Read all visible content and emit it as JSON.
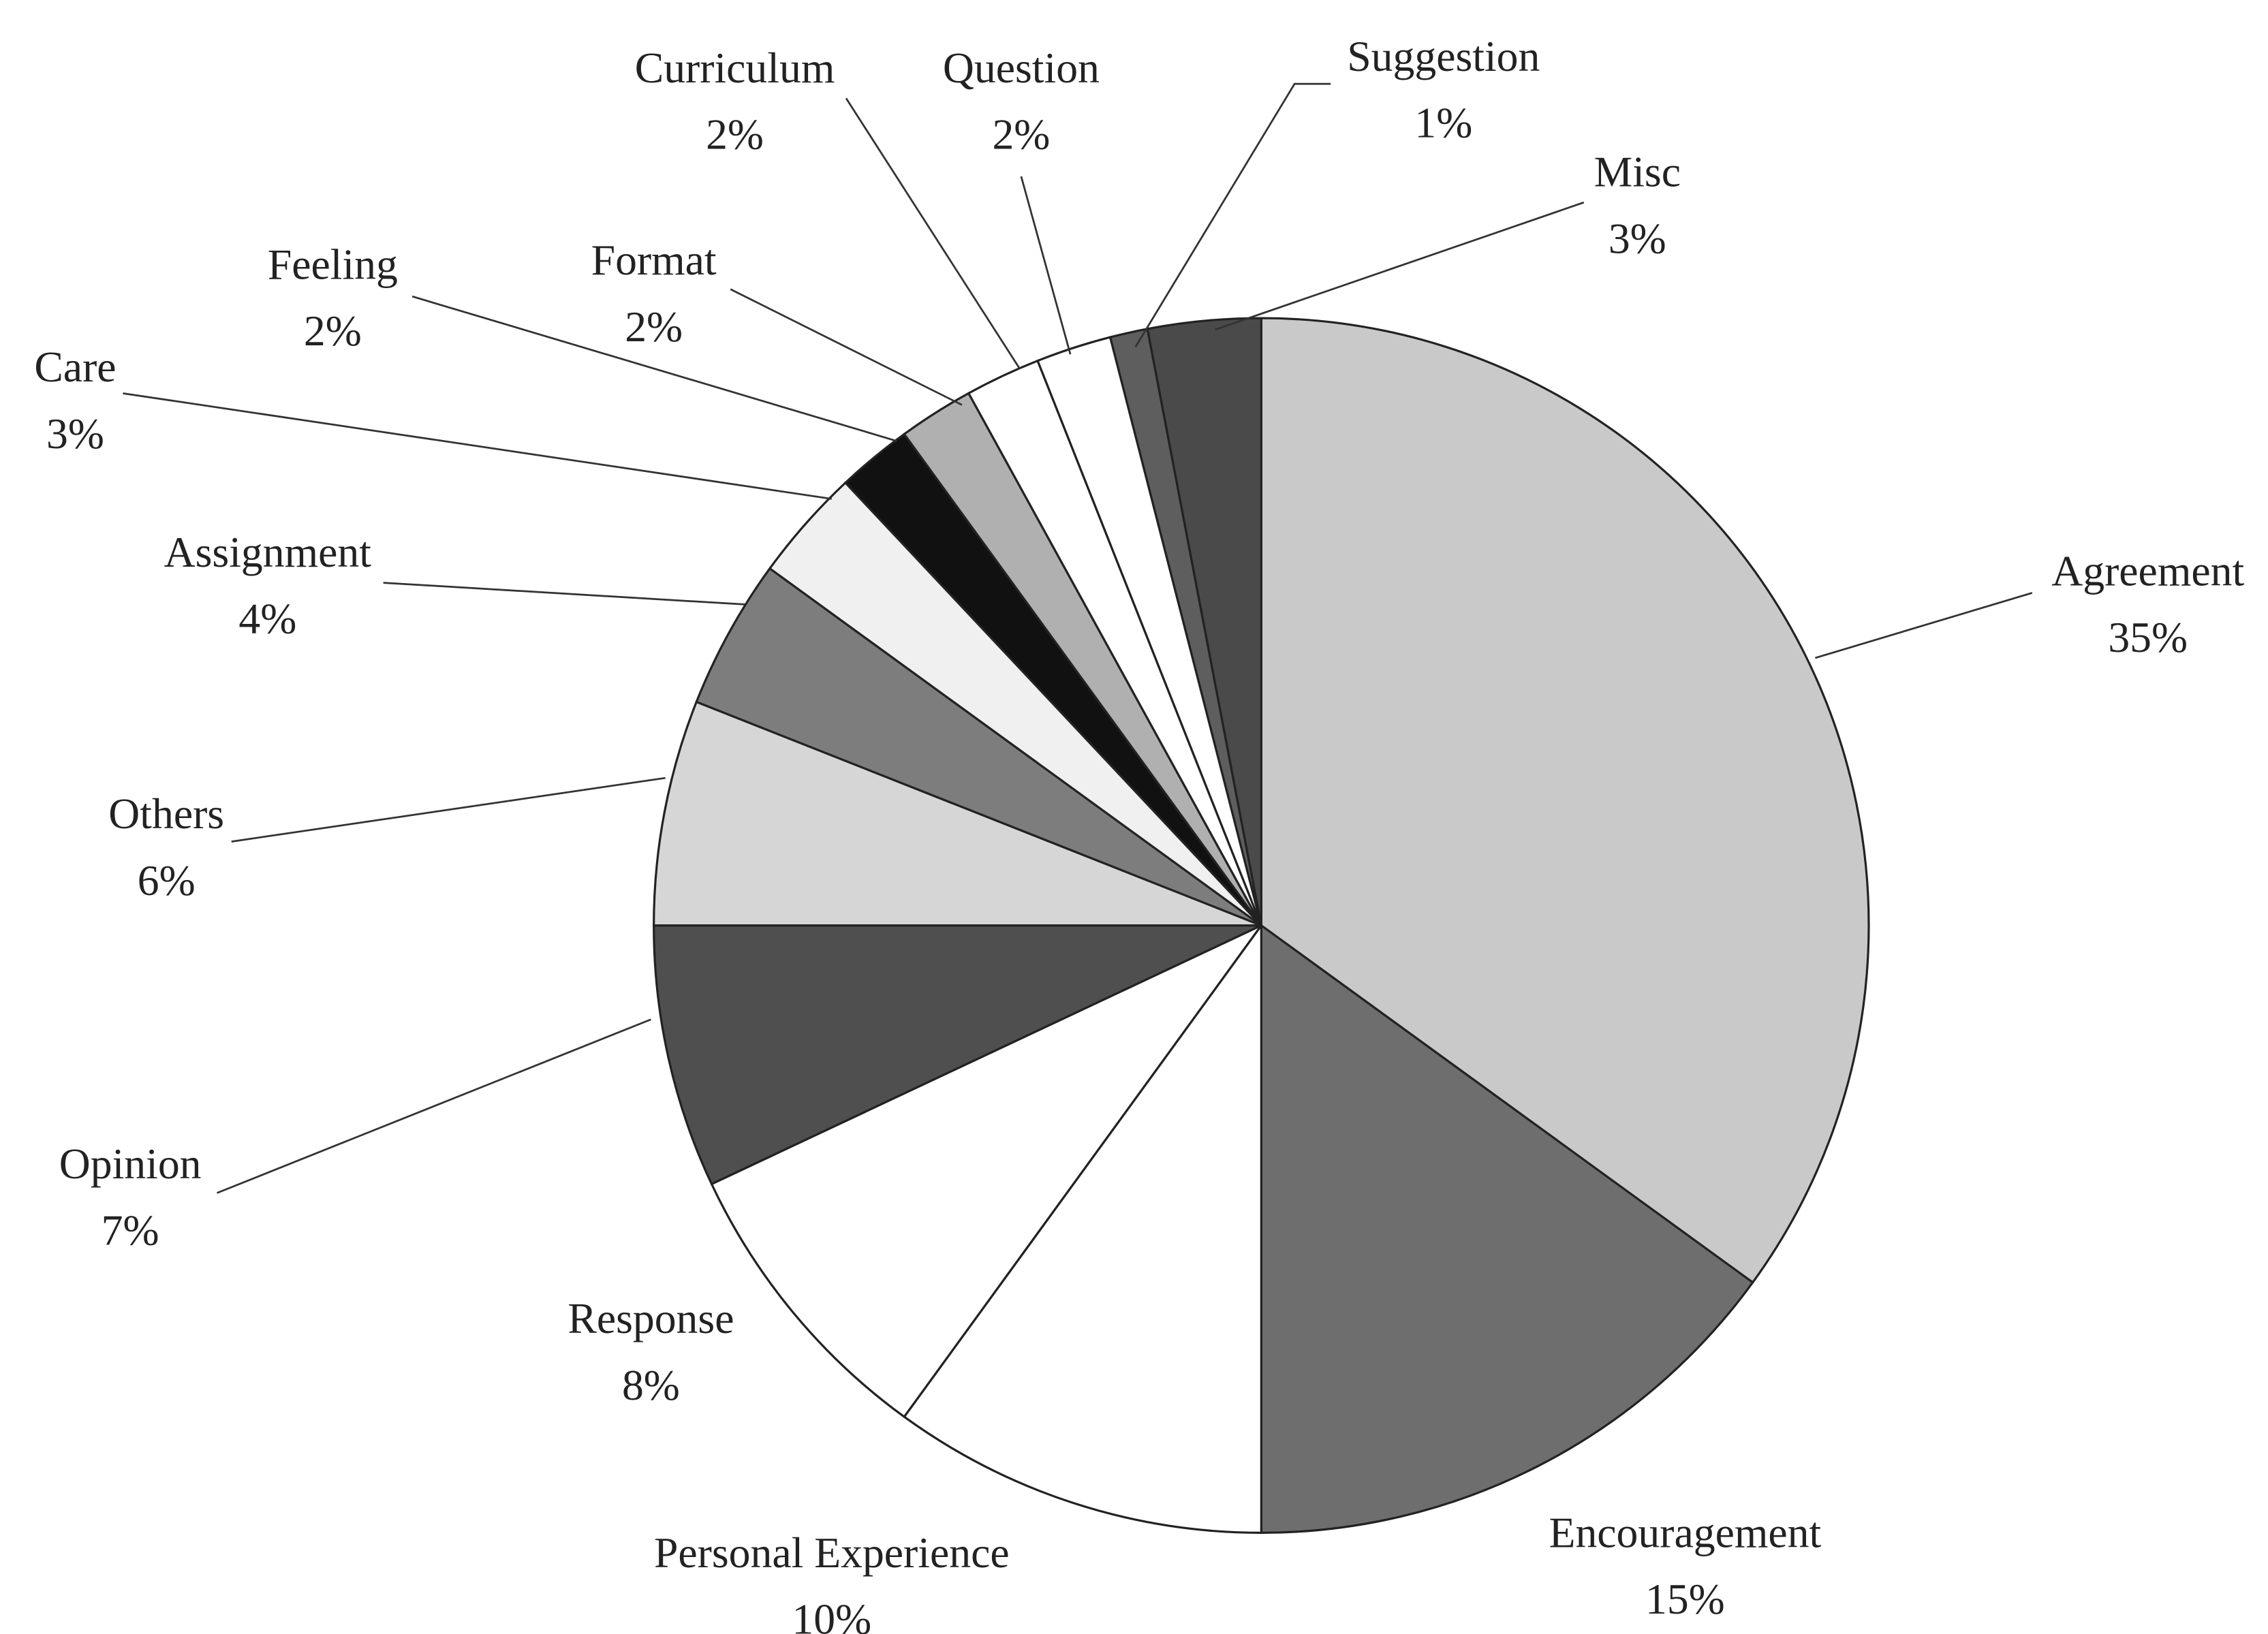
{
  "chart_data": {
    "type": "pie",
    "categories": [
      "Agreement",
      "Encouragement",
      "Personal Experience",
      "Response",
      "Opinion",
      "Others",
      "Assignment",
      "Care",
      "Feeling",
      "Format",
      "Curriculum",
      "Question",
      "Suggestion",
      "Misc"
    ],
    "values": [
      35,
      15,
      10,
      8,
      7,
      6,
      4,
      3,
      2,
      2,
      2,
      2,
      1,
      3
    ],
    "value_labels": [
      "35%",
      "15%",
      "10%",
      "8%",
      "7%",
      "6%",
      "4%",
      "3%",
      "2%",
      "2%",
      "2%",
      "2%",
      "1%",
      "3%"
    ],
    "colors": [
      "#c9c9c9",
      "#6e6e6e",
      "#ffffff",
      "#ffffff",
      "#4f4f4f",
      "#d6d6d6",
      "#7d7d7d",
      "#f0f0f0",
      "#111111",
      "#b0b0b0",
      "#ffffff",
      "#ffffff",
      "#5e5e5e",
      "#4a4a4a"
    ]
  }
}
